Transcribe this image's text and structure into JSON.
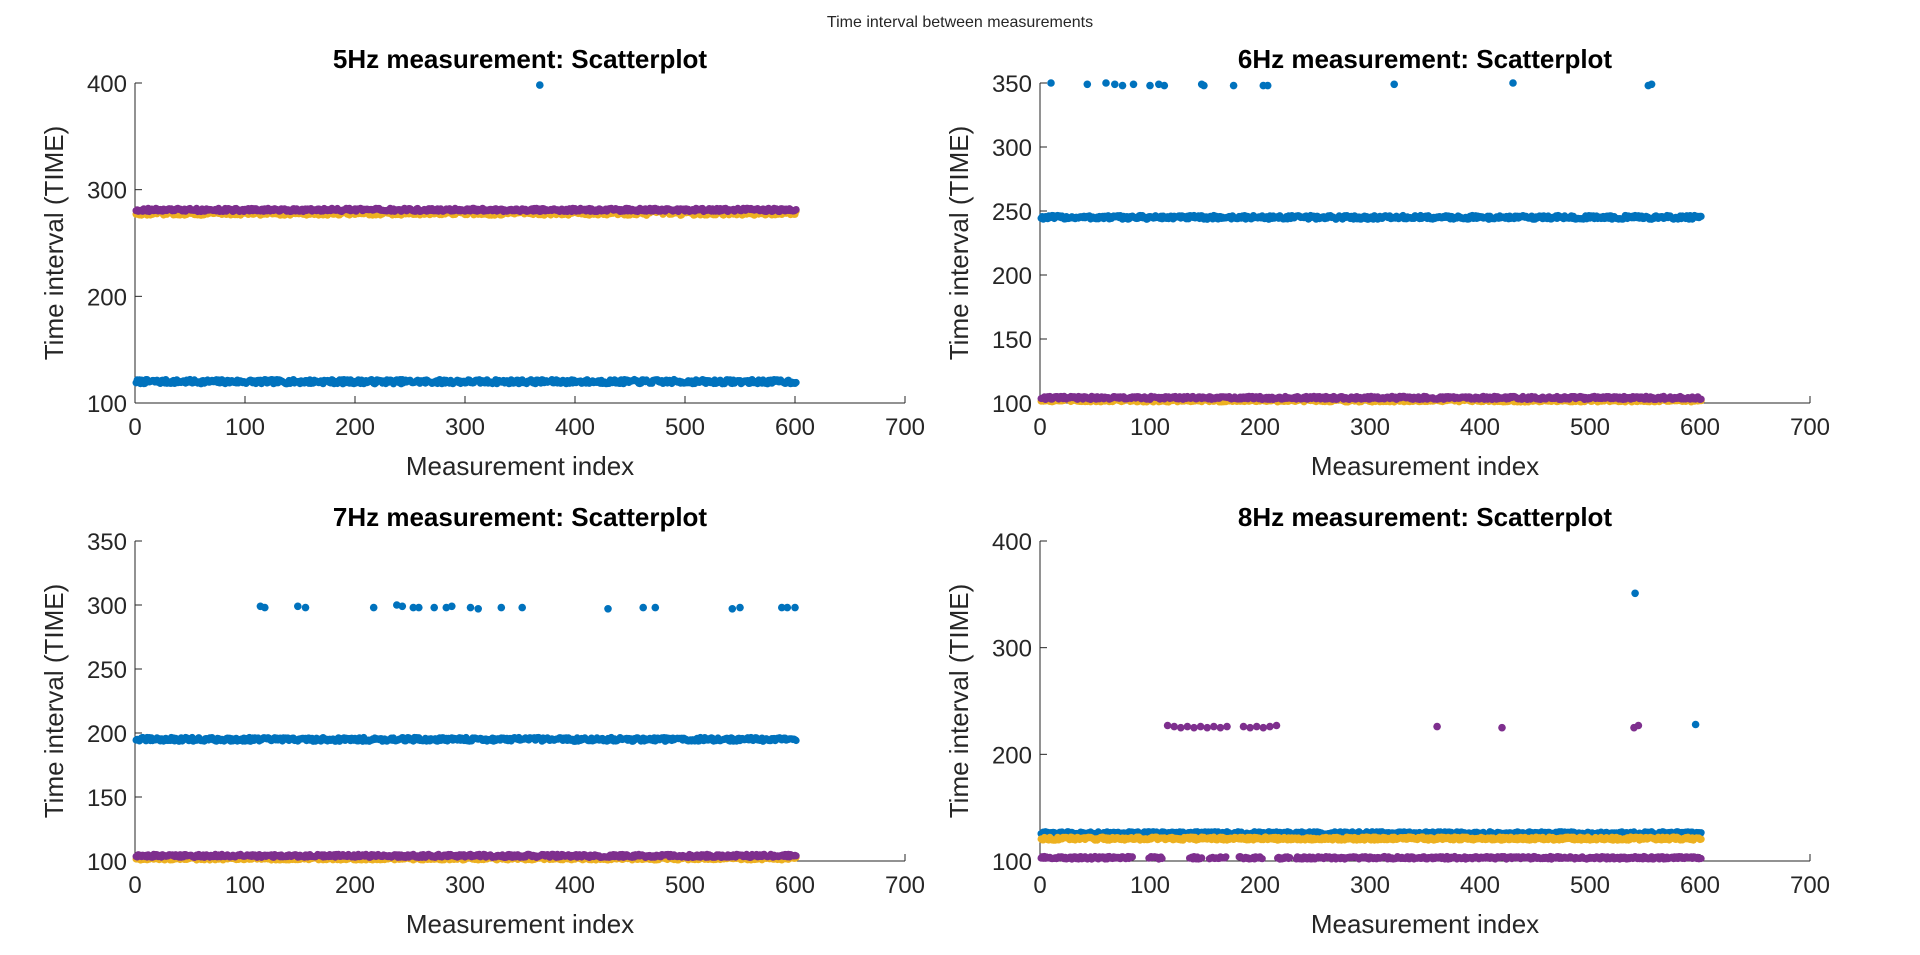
{
  "figure": {
    "title": "Time interval between measurements"
  },
  "colors": {
    "series1": "#0072BD",
    "series2": "#EDB120",
    "series3": "#7E2F8E",
    "axis": "#262626"
  },
  "chart_data": [
    {
      "type": "scatter",
      "title": "5Hz measurement: Scatterplot",
      "xlabel": "Measurement index",
      "ylabel": "Time interval (TIME)",
      "xlim": [
        0,
        700
      ],
      "ylim": [
        100,
        400
      ],
      "xticks": [
        "0",
        "100",
        "200",
        "300",
        "400",
        "500",
        "600",
        "700"
      ],
      "yticks": [
        "100",
        "200",
        "300",
        "400"
      ],
      "grid": false,
      "series": [
        {
          "color": "#0072BD",
          "x_range": [
            1,
            601
          ],
          "baseline": 120,
          "jitter": 2,
          "outliers": [
            [
              368,
              398
            ]
          ]
        },
        {
          "color": "#EDB120",
          "x_range": [
            1,
            601
          ],
          "baseline": 278,
          "jitter": 2,
          "outliers": []
        },
        {
          "color": "#7E2F8E",
          "x_range": [
            1,
            601
          ],
          "baseline": 281,
          "jitter": 1.5,
          "outliers": []
        }
      ]
    },
    {
      "type": "scatter",
      "title": "6Hz measurement: Scatterplot",
      "xlabel": "Measurement index",
      "ylabel": "Time interval (TIME)",
      "xlim": [
        0,
        700
      ],
      "ylim": [
        100,
        350
      ],
      "xticks": [
        "0",
        "100",
        "200",
        "300",
        "400",
        "500",
        "600",
        "700"
      ],
      "yticks": [
        "100",
        "150",
        "200",
        "250",
        "300",
        "350"
      ],
      "grid": false,
      "series": [
        {
          "color": "#0072BD",
          "x_range": [
            1,
            601
          ],
          "baseline": 245,
          "jitter": 1.5,
          "outliers": [
            [
              10,
              350
            ],
            [
              43,
              349
            ],
            [
              60,
              350
            ],
            [
              68,
              349
            ],
            [
              75,
              348
            ],
            [
              85,
              349
            ],
            [
              100,
              348
            ],
            [
              108,
              349
            ],
            [
              113,
              348
            ],
            [
              147,
              349
            ],
            [
              149,
              348
            ],
            [
              176,
              348
            ],
            [
              203,
              348
            ],
            [
              207,
              348
            ],
            [
              322,
              349
            ],
            [
              430,
              350
            ],
            [
              553,
              348
            ],
            [
              556,
              349
            ]
          ]
        },
        {
          "color": "#EDB120",
          "x_range": [
            1,
            601
          ],
          "baseline": 102,
          "jitter": 1.2,
          "outliers": []
        },
        {
          "color": "#7E2F8E",
          "x_range": [
            1,
            601
          ],
          "baseline": 104,
          "jitter": 1.2,
          "outliers": []
        }
      ]
    },
    {
      "type": "scatter",
      "title": "7Hz measurement: Scatterplot",
      "xlabel": "Measurement index",
      "ylabel": "Time interval (TIME)",
      "xlim": [
        0,
        700
      ],
      "ylim": [
        100,
        350
      ],
      "xticks": [
        "0",
        "100",
        "200",
        "300",
        "400",
        "500",
        "600",
        "700"
      ],
      "yticks": [
        "100",
        "150",
        "200",
        "250",
        "300",
        "350"
      ],
      "grid": false,
      "series": [
        {
          "color": "#0072BD",
          "x_range": [
            1,
            601
          ],
          "baseline": 195,
          "jitter": 1.5,
          "outliers": [
            [
              114,
              299
            ],
            [
              118,
              298
            ],
            [
              148,
              299
            ],
            [
              155,
              298
            ],
            [
              217,
              298
            ],
            [
              238,
              300
            ],
            [
              243,
              299
            ],
            [
              253,
              298
            ],
            [
              258,
              298
            ],
            [
              272,
              298
            ],
            [
              283,
              298
            ],
            [
              288,
              299
            ],
            [
              305,
              298
            ],
            [
              312,
              297
            ],
            [
              333,
              298
            ],
            [
              352,
              298
            ],
            [
              430,
              297
            ],
            [
              462,
              298
            ],
            [
              473,
              298
            ],
            [
              543,
              297
            ],
            [
              550,
              298
            ],
            [
              588,
              298
            ],
            [
              593,
              298
            ],
            [
              600,
              298
            ]
          ]
        },
        {
          "color": "#EDB120",
          "x_range": [
            1,
            601
          ],
          "baseline": 102,
          "jitter": 1.2,
          "outliers": []
        },
        {
          "color": "#7E2F8E",
          "x_range": [
            1,
            601
          ],
          "baseline": 104,
          "jitter": 1.2,
          "outliers": []
        }
      ]
    },
    {
      "type": "scatter",
      "title": "8Hz measurement: Scatterplot",
      "xlabel": "Measurement index",
      "ylabel": "Time interval (TIME)",
      "xlim": [
        0,
        700
      ],
      "ylim": [
        100,
        400
      ],
      "xticks": [
        "0",
        "100",
        "200",
        "300",
        "400",
        "500",
        "600",
        "700"
      ],
      "yticks": [
        "100",
        "200",
        "300",
        "400"
      ],
      "grid": false,
      "series": [
        {
          "color": "#0072BD",
          "x_range": [
            1,
            601
          ],
          "baseline": 126,
          "jitter": 1.5,
          "outliers": [
            [
              541,
              351
            ],
            [
              596,
              228
            ]
          ]
        },
        {
          "color": "#EDB120",
          "x_range": [
            1,
            601
          ],
          "baseline": 121,
          "jitter": 1.5,
          "outliers": []
        },
        {
          "color": "#7E2F8E",
          "x_range": [
            1,
            601
          ],
          "baseline": 103,
          "jitter": 1.2,
          "gaps": [
            [
              85,
              98
            ],
            [
              112,
              135
            ],
            [
              148,
              153
            ],
            [
              170,
              180
            ],
            [
              203,
              215
            ],
            [
              228,
              232
            ]
          ],
          "outliers": [
            [
              116,
              227
            ],
            [
              122,
              226
            ],
            [
              128,
              225
            ],
            [
              134,
              226
            ],
            [
              140,
              225
            ],
            [
              146,
              226
            ],
            [
              152,
              225
            ],
            [
              158,
              226
            ],
            [
              164,
              225
            ],
            [
              170,
              226
            ],
            [
              185,
              226
            ],
            [
              191,
              225
            ],
            [
              197,
              226
            ],
            [
              203,
              225
            ],
            [
              209,
              226
            ],
            [
              215,
              227
            ],
            [
              361,
              226
            ],
            [
              420,
              225
            ],
            [
              540,
              225
            ],
            [
              544,
              227
            ]
          ]
        }
      ]
    }
  ]
}
